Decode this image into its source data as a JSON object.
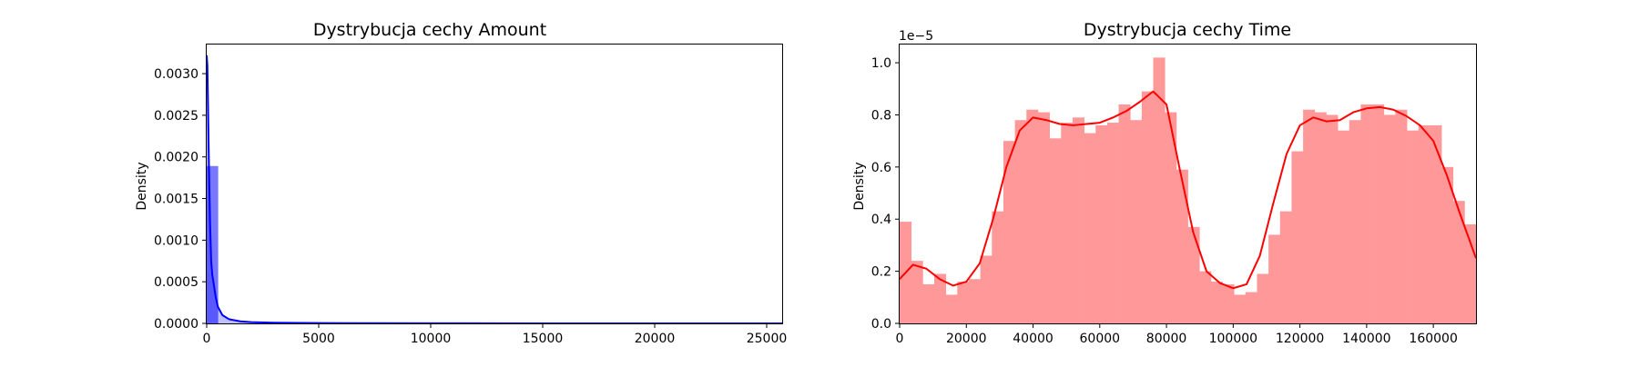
{
  "chart_data": [
    {
      "type": "histogram",
      "title": "Dystrybucja cechy Amount",
      "xlabel": "",
      "ylabel": "Density",
      "xlim": [
        0,
        25691
      ],
      "ylim": [
        0,
        0.00335
      ],
      "x_ticks": [
        0,
        5000,
        10000,
        15000,
        20000,
        25000
      ],
      "y_ticks": [
        0,
        0.0005,
        0.001,
        0.0015,
        0.002,
        0.0025,
        0.003
      ],
      "y_tick_labels": [
        "0.0000",
        "0.0005",
        "0.0010",
        "0.0015",
        "0.0020",
        "0.0025",
        "0.0030"
      ],
      "x_tick_labels": [
        "0",
        "5000",
        "10000",
        "15000",
        "20000",
        "25000"
      ],
      "bars": {
        "bin_edges": [
          0,
          513.8
        ],
        "values": [
          0.00189
        ]
      },
      "kde": {
        "x": [
          0,
          30,
          60,
          100,
          150,
          200,
          250,
          300,
          400,
          500,
          700,
          1000,
          1500,
          2000,
          3000,
          5000,
          10000,
          15000,
          20000,
          25691
        ],
        "y": [
          0.00322,
          0.0031,
          0.0026,
          0.0019,
          0.0012,
          0.00075,
          0.00058,
          0.0005,
          0.00032,
          0.0002,
          0.0001,
          5e-05,
          2.5e-05,
          1.5e-05,
          8e-06,
          4e-06,
          1e-06,
          5e-07,
          3e-07,
          2e-07
        ]
      },
      "colors": {
        "bar": "#7777ff",
        "line": "#0000ff"
      }
    },
    {
      "type": "histogram",
      "title": "Dystrybucja cechy Time",
      "xlabel": "",
      "ylabel": "Density",
      "offset_text": "1e−5",
      "xlim": [
        0,
        172792
      ],
      "ylim": [
        0,
        1.07
      ],
      "x_ticks": [
        0,
        20000,
        40000,
        60000,
        80000,
        100000,
        120000,
        140000,
        160000
      ],
      "x_tick_labels": [
        "0",
        "20000",
        "40000",
        "60000",
        "80000",
        "100000",
        "120000",
        "140000",
        "160000"
      ],
      "y_ticks": [
        0,
        0.2,
        0.4,
        0.6,
        0.8,
        1.0
      ],
      "y_tick_labels": [
        "0.0",
        "0.2",
        "0.4",
        "0.6",
        "0.8",
        "1.0"
      ],
      "bars": {
        "bin_width": 3455.84,
        "values": [
          0.39,
          0.24,
          0.15,
          0.19,
          0.11,
          0.16,
          0.17,
          0.26,
          0.43,
          0.7,
          0.78,
          0.82,
          0.81,
          0.71,
          0.77,
          0.79,
          0.73,
          0.76,
          0.77,
          0.84,
          0.78,
          0.89,
          1.02,
          0.81,
          0.59,
          0.37,
          0.2,
          0.16,
          0.15,
          0.11,
          0.12,
          0.19,
          0.34,
          0.43,
          0.66,
          0.82,
          0.81,
          0.8,
          0.74,
          0.78,
          0.84,
          0.84,
          0.8,
          0.82,
          0.74,
          0.76,
          0.76,
          0.6,
          0.47,
          0.38
        ]
      },
      "kde": {
        "x": [
          0,
          4000,
          8000,
          12000,
          16000,
          20000,
          24000,
          28000,
          32000,
          36000,
          40000,
          44000,
          48000,
          52000,
          56000,
          60000,
          64000,
          68000,
          72000,
          76000,
          80000,
          84000,
          88000,
          92000,
          96000,
          100000,
          104000,
          108000,
          112000,
          116000,
          120000,
          124000,
          128000,
          132000,
          136000,
          140000,
          144000,
          148000,
          152000,
          156000,
          160000,
          164000,
          168000,
          172792
        ],
        "y": [
          0.17,
          0.225,
          0.21,
          0.17,
          0.145,
          0.16,
          0.23,
          0.4,
          0.6,
          0.74,
          0.79,
          0.78,
          0.765,
          0.76,
          0.765,
          0.77,
          0.79,
          0.815,
          0.85,
          0.89,
          0.84,
          0.59,
          0.35,
          0.2,
          0.155,
          0.135,
          0.15,
          0.26,
          0.46,
          0.65,
          0.76,
          0.79,
          0.775,
          0.78,
          0.81,
          0.825,
          0.83,
          0.82,
          0.795,
          0.76,
          0.7,
          0.57,
          0.42,
          0.25
        ]
      },
      "colors": {
        "bar": "#ff9999",
        "line": "#ff0000"
      }
    }
  ]
}
